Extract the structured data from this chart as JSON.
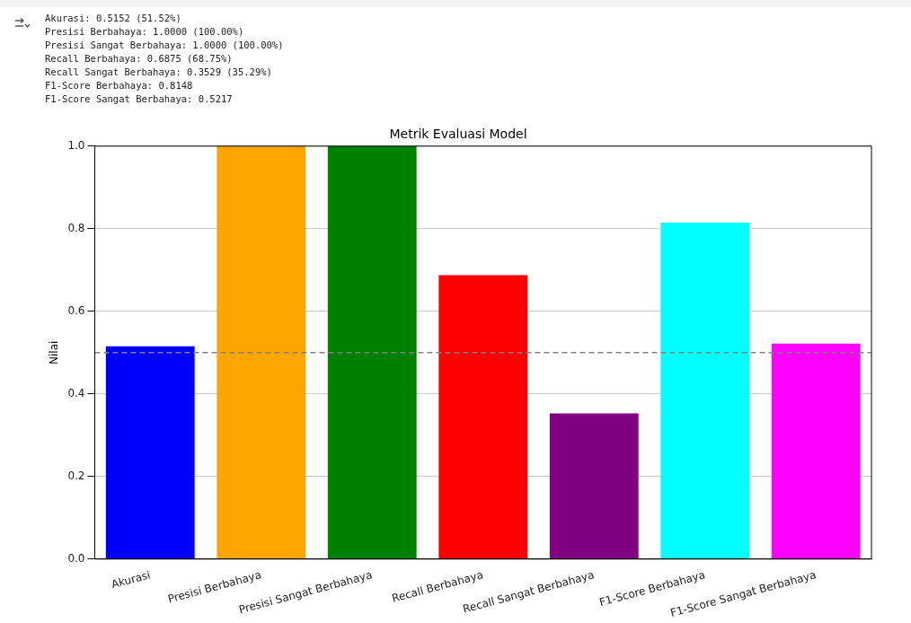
{
  "chart_data": {
    "type": "bar",
    "title": "Metrik Evaluasi Model",
    "ylabel": "Nilai",
    "categories": [
      "Akurasi",
      "Presisi Berbahaya",
      "Presisi Sangat Berbahaya",
      "Recall Berbahaya",
      "Recall Sangat Berbahaya",
      "F1-Score Berbahaya",
      "F1-Score Sangat Berbahaya"
    ],
    "values": [
      0.5152,
      1.0,
      1.0,
      0.6875,
      0.3529,
      0.8148,
      0.5217
    ],
    "colors": [
      "#0000ff",
      "#ffa500",
      "#008000",
      "#ff0000",
      "#800080",
      "#00ffff",
      "#ff00ff"
    ],
    "ylim": [
      0,
      1
    ],
    "yticks": [
      {
        "value": 0,
        "label": "0.0"
      },
      {
        "value": 0.2,
        "label": "0.2"
      },
      {
        "value": 0.4,
        "label": "0.4"
      },
      {
        "value": 0.6,
        "label": "0.6"
      },
      {
        "value": 0.8,
        "label": "0.8"
      },
      {
        "value": 1,
        "label": "1.0"
      }
    ],
    "grid": "y",
    "ref_lines": [
      {
        "axis": "y",
        "value": 0.5,
        "color": "#808080",
        "line_style": "dashed"
      }
    ],
    "annotations": [
      "Akurasi: 0.5152 (51.52%)",
      "Presisi Berbahaya: 1.0000 (100.00%)",
      "Presisi Sangat Berbahaya: 1.0000 (100.00%)",
      "Recall Berbahaya: 0.6875 (68.75%)",
      "Recall Sangat Berbahaya: 0.3529 (35.29%)",
      "F1-Score Berbahaya: 0.8148",
      "F1-Score Sangat Berbahaya: 0.5217"
    ]
  }
}
